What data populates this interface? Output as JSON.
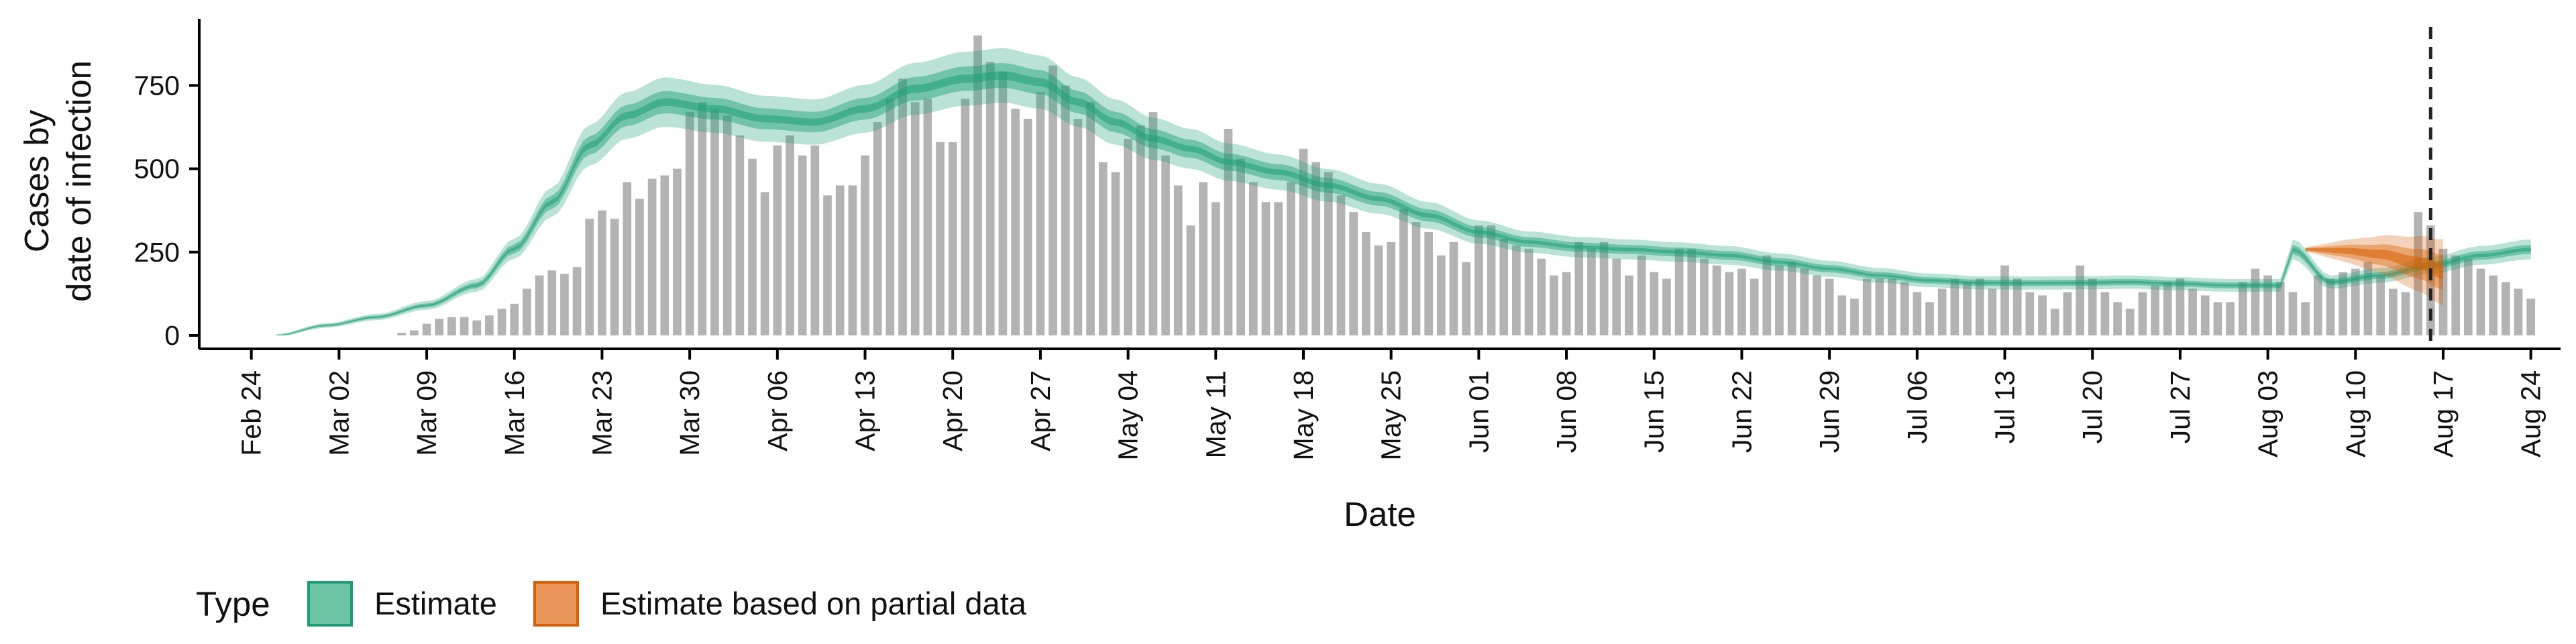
{
  "chart_data": {
    "type": "bar",
    "title": "",
    "xlabel": "Date",
    "ylabel": [
      "Cases by",
      "date of infection"
    ],
    "yticks": [
      0,
      250,
      500,
      750
    ],
    "ylim": [
      0,
      950
    ],
    "x_range": [
      "2020-02-20",
      "2020-08-26"
    ],
    "xticks": [
      "2020-02-24",
      "2020-03-02",
      "2020-03-09",
      "2020-03-16",
      "2020-03-23",
      "2020-03-30",
      "2020-04-06",
      "2020-04-13",
      "2020-04-20",
      "2020-04-27",
      "2020-05-04",
      "2020-05-11",
      "2020-05-18",
      "2020-05-25",
      "2020-06-01",
      "2020-06-08",
      "2020-06-15",
      "2020-06-22",
      "2020-06-29",
      "2020-07-06",
      "2020-07-13",
      "2020-07-20",
      "2020-07-27",
      "2020-08-03",
      "2020-08-10",
      "2020-08-17",
      "2020-08-24"
    ],
    "xtick_labels": [
      "Feb 24",
      "Mar 02",
      "Mar 09",
      "Mar 16",
      "Mar 23",
      "Mar 30",
      "Apr 06",
      "Apr 13",
      "Apr 20",
      "Apr 27",
      "May 04",
      "May 11",
      "May 18",
      "May 25",
      "Jun 01",
      "Jun 08",
      "Jun 15",
      "Jun 22",
      "Jun 29",
      "Jul 06",
      "Jul 13",
      "Jul 20",
      "Jul 27",
      "Aug 03",
      "Aug 10",
      "Aug 17",
      "Aug 24"
    ],
    "vline_date": "2020-08-16",
    "grid": false,
    "legend_position": "bottom",
    "legend_title": "Type",
    "legend": [
      {
        "label": "Estimate",
        "fill": "#6cc4a5",
        "stroke": "#1b9e77"
      },
      {
        "label": "Estimate based on partial data",
        "fill": "#ea965a",
        "stroke": "#d95f02"
      }
    ],
    "colors": {
      "bars": "#b3b3b3",
      "estimate": "#1b9e77",
      "partial": "#d95f02",
      "axis": "#000000"
    },
    "bars_start": "2020-03-07",
    "bars": [
      8,
      15,
      35,
      50,
      55,
      55,
      45,
      60,
      80,
      95,
      140,
      180,
      195,
      185,
      205,
      350,
      375,
      350,
      460,
      410,
      470,
      480,
      500,
      670,
      700,
      680,
      660,
      600,
      530,
      430,
      570,
      600,
      540,
      570,
      420,
      450,
      450,
      540,
      640,
      710,
      770,
      700,
      710,
      580,
      580,
      710,
      900,
      820,
      790,
      680,
      650,
      730,
      810,
      750,
      650,
      700,
      520,
      490,
      590,
      630,
      670,
      540,
      450,
      330,
      460,
      400,
      620,
      530,
      460,
      400,
      400,
      460,
      560,
      520,
      490,
      420,
      370,
      310,
      270,
      280,
      380,
      340,
      310,
      240,
      280,
      220,
      330,
      330,
      290,
      270,
      260,
      230,
      180,
      190,
      280,
      260,
      280,
      230,
      180,
      240,
      190,
      170,
      260,
      260,
      230,
      210,
      190,
      200,
      170,
      240,
      210,
      220,
      200,
      180,
      170,
      120,
      110,
      170,
      170,
      170,
      160,
      130,
      100,
      140,
      170,
      160,
      170,
      140,
      210,
      170,
      130,
      120,
      80,
      130,
      210,
      170,
      130,
      100,
      80,
      130,
      150,
      160,
      170,
      140,
      120,
      100,
      100,
      160,
      200,
      180,
      160,
      130,
      100,
      180,
      170,
      190,
      200,
      220,
      180,
      140,
      130,
      370,
      330,
      260,
      240,
      230,
      200,
      180,
      160,
      140,
      110
    ],
    "estimate_start": "2020-02-26",
    "estimate_end": "2020-08-05",
    "estimate_knots": [
      [
        0,
        0
      ],
      [
        4,
        30
      ],
      [
        8,
        55
      ],
      [
        12,
        90
      ],
      [
        16,
        150
      ],
      [
        19,
        260
      ],
      [
        22,
        400
      ],
      [
        25,
        570
      ],
      [
        28,
        660
      ],
      [
        31,
        700
      ],
      [
        35,
        680
      ],
      [
        39,
        650
      ],
      [
        43,
        640
      ],
      [
        47,
        680
      ],
      [
        51,
        740
      ],
      [
        55,
        770
      ],
      [
        58,
        780
      ],
      [
        61,
        760
      ],
      [
        64,
        700
      ],
      [
        67,
        640
      ],
      [
        70,
        590
      ],
      [
        73,
        560
      ],
      [
        76,
        520
      ],
      [
        80,
        490
      ],
      [
        84,
        450
      ],
      [
        88,
        410
      ],
      [
        92,
        360
      ],
      [
        96,
        310
      ],
      [
        100,
        280
      ],
      [
        104,
        265
      ],
      [
        108,
        258
      ],
      [
        112,
        250
      ],
      [
        116,
        240
      ],
      [
        120,
        220
      ],
      [
        124,
        200
      ],
      [
        128,
        180
      ],
      [
        132,
        165
      ],
      [
        136,
        158
      ],
      [
        140,
        157
      ],
      [
        144,
        158
      ],
      [
        148,
        160
      ],
      [
        152,
        155
      ],
      [
        156,
        150
      ],
      [
        160,
        150
      ],
      [
        164,
        160
      ],
      [
        168,
        180
      ],
      [
        172,
        210
      ],
      [
        176,
        240
      ],
      [
        180,
        258
      ],
      [
        161,
        258
      ]
    ],
    "partial_start": "2020-08-06",
    "partial_knots": [
      [
        0,
        258
      ],
      [
        3,
        255
      ],
      [
        6,
        245
      ],
      [
        9,
        220
      ],
      [
        11,
        195
      ]
    ]
  }
}
